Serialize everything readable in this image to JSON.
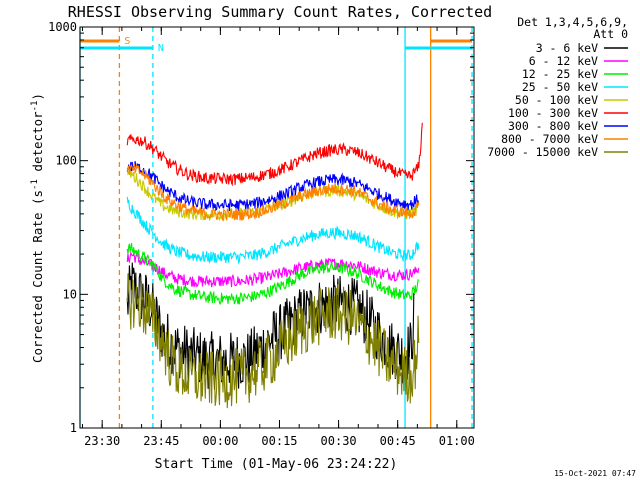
{
  "chart_data": {
    "type": "line",
    "title": "RHESSI Observing Summary Count Rates, Corrected",
    "xlabel": "Start Time (01-May-06 23:24:22)",
    "ylabel": "Corrected Count Rate (s⁻¹ detector⁻¹)",
    "ylabel_parts": {
      "a": "Corrected Count Rate (s",
      "b": "-1",
      "c": " detector",
      "d": "-1",
      "e": ")"
    },
    "yscale": "log",
    "ylim": [
      1,
      1000
    ],
    "xlim_minutes": [
      0,
      100
    ],
    "y_ticks": [
      {
        "v": 1,
        "label": "1"
      },
      {
        "v": 10,
        "label": "10"
      },
      {
        "v": 100,
        "label": "100"
      },
      {
        "v": 1000,
        "label": "1000"
      }
    ],
    "x_ticks": [
      {
        "t": 5.63,
        "label": "23:30"
      },
      {
        "t": 20.63,
        "label": "23:45"
      },
      {
        "t": 35.63,
        "label": "00:00"
      },
      {
        "t": 50.63,
        "label": "00:15"
      },
      {
        "t": 65.63,
        "label": "00:30"
      },
      {
        "t": 80.63,
        "label": "00:45"
      },
      {
        "t": 95.63,
        "label": "01:00"
      }
    ],
    "legend_header": [
      "Det 1,3,4,5,6,9,",
      "Att 0"
    ],
    "timestamp": "15-Oct-2021 07:47",
    "markers": {
      "S": {
        "label": "S",
        "t": 10.0,
        "color": "#ff8000"
      },
      "N": {
        "label": "N",
        "t": 18.5,
        "color": "#00e5ff"
      },
      "cyan_bar_left": [
        0,
        18.5
      ],
      "orange_bar_left": [
        0,
        10.0
      ],
      "cyan_vlines": [
        0,
        18.5,
        82.5,
        99.5
      ],
      "orange_vlines": [
        10.0,
        89.0
      ],
      "orange_bar_right": [
        89.0,
        99.5
      ],
      "cyan_bar_right": [
        82.5,
        99.5
      ]
    },
    "series": [
      {
        "name": "3 - 6 keV",
        "color": "#000000",
        "start_t": 12,
        "end_t": 85,
        "points": [
          [
            12,
            8
          ],
          [
            13,
            12
          ],
          [
            15,
            10
          ],
          [
            17,
            9
          ],
          [
            19,
            7
          ],
          [
            21,
            5
          ],
          [
            24,
            4
          ],
          [
            28,
            3.5
          ],
          [
            33,
            3.2
          ],
          [
            38,
            3.2
          ],
          [
            43,
            3.3
          ],
          [
            48,
            4.5
          ],
          [
            52,
            5.5
          ],
          [
            56,
            7
          ],
          [
            60,
            8
          ],
          [
            64,
            8.5
          ],
          [
            67,
            8.5
          ],
          [
            70,
            8
          ],
          [
            73,
            6.5
          ],
          [
            76,
            5
          ],
          [
            79,
            4
          ],
          [
            82,
            3.5
          ],
          [
            84,
            4
          ],
          [
            85,
            8
          ]
        ]
      },
      {
        "name": "6 - 12 keV",
        "color": "#ff00ff",
        "start_t": 12,
        "end_t": 86,
        "points": [
          [
            12,
            18
          ],
          [
            13,
            20
          ],
          [
            15,
            18
          ],
          [
            17,
            17
          ],
          [
            19,
            16
          ],
          [
            22,
            14
          ],
          [
            25,
            13
          ],
          [
            30,
            12.5
          ],
          [
            35,
            12.5
          ],
          [
            40,
            12.5
          ],
          [
            45,
            13
          ],
          [
            50,
            14
          ],
          [
            55,
            15.5
          ],
          [
            60,
            16.5
          ],
          [
            64,
            17
          ],
          [
            67,
            17
          ],
          [
            70,
            16.5
          ],
          [
            73,
            15.5
          ],
          [
            76,
            14.5
          ],
          [
            80,
            14
          ],
          [
            83,
            14
          ],
          [
            85,
            14.5
          ],
          [
            86,
            16
          ]
        ]
      },
      {
        "name": "12 - 25 keV",
        "color": "#00ee00",
        "start_t": 12,
        "end_t": 86,
        "points": [
          [
            12,
            22
          ],
          [
            13,
            22
          ],
          [
            15,
            20
          ],
          [
            17,
            18
          ],
          [
            19,
            16
          ],
          [
            21,
            13
          ],
          [
            24,
            11
          ],
          [
            28,
            10
          ],
          [
            32,
            9.5
          ],
          [
            36,
            9.3
          ],
          [
            40,
            9.3
          ],
          [
            44,
            9.6
          ],
          [
            48,
            10.5
          ],
          [
            52,
            12
          ],
          [
            56,
            14
          ],
          [
            60,
            15.5
          ],
          [
            64,
            16
          ],
          [
            67,
            15.5
          ],
          [
            70,
            14.5
          ],
          [
            73,
            13
          ],
          [
            76,
            11.5
          ],
          [
            79,
            10.5
          ],
          [
            82,
            9.8
          ],
          [
            84,
            9.8
          ],
          [
            86,
            12
          ]
        ]
      },
      {
        "name": "25 - 50 keV",
        "color": "#00e5ff",
        "start_t": 12,
        "end_t": 86,
        "points": [
          [
            12,
            50
          ],
          [
            13,
            45
          ],
          [
            15,
            38
          ],
          [
            17,
            32
          ],
          [
            19,
            28
          ],
          [
            21,
            24
          ],
          [
            24,
            21
          ],
          [
            28,
            19.5
          ],
          [
            32,
            19
          ],
          [
            36,
            19
          ],
          [
            40,
            19
          ],
          [
            44,
            19.5
          ],
          [
            48,
            21
          ],
          [
            52,
            23.5
          ],
          [
            56,
            26
          ],
          [
            60,
            28
          ],
          [
            64,
            29
          ],
          [
            67,
            28.5
          ],
          [
            70,
            27.5
          ],
          [
            73,
            25
          ],
          [
            76,
            22.5
          ],
          [
            79,
            20.5
          ],
          [
            82,
            19.5
          ],
          [
            84,
            19.5
          ],
          [
            86,
            24
          ]
        ]
      },
      {
        "name": "50 - 100 keV",
        "color": "#c8c800",
        "start_t": 12,
        "end_t": 86,
        "points": [
          [
            12,
            82
          ],
          [
            13,
            80
          ],
          [
            15,
            70
          ],
          [
            17,
            60
          ],
          [
            19,
            52
          ],
          [
            21,
            46
          ],
          [
            24,
            42
          ],
          [
            28,
            40
          ],
          [
            32,
            39.5
          ],
          [
            36,
            39.5
          ],
          [
            40,
            40
          ],
          [
            44,
            41
          ],
          [
            48,
            44
          ],
          [
            52,
            48
          ],
          [
            56,
            54
          ],
          [
            60,
            58
          ],
          [
            64,
            60
          ],
          [
            67,
            59
          ],
          [
            70,
            56
          ],
          [
            73,
            51
          ],
          [
            76,
            46
          ],
          [
            79,
            42
          ],
          [
            82,
            40
          ],
          [
            84,
            40
          ],
          [
            86,
            44
          ]
        ]
      },
      {
        "name": "100 - 300 keV",
        "color": "#ff0000",
        "start_t": 12,
        "end_t": 87,
        "points": [
          [
            12,
            140
          ],
          [
            14,
            145
          ],
          [
            16,
            140
          ],
          [
            18,
            128
          ],
          [
            20,
            112
          ],
          [
            22,
            98
          ],
          [
            25,
            86
          ],
          [
            28,
            78
          ],
          [
            32,
            74
          ],
          [
            36,
            73
          ],
          [
            40,
            73
          ],
          [
            44,
            75
          ],
          [
            48,
            80
          ],
          [
            52,
            88
          ],
          [
            56,
            100
          ],
          [
            60,
            113
          ],
          [
            64,
            120
          ],
          [
            67,
            121
          ],
          [
            70,
            116
          ],
          [
            73,
            106
          ],
          [
            76,
            95
          ],
          [
            79,
            85
          ],
          [
            82,
            78
          ],
          [
            84,
            76
          ],
          [
            86,
            90
          ],
          [
            87,
            200
          ]
        ]
      },
      {
        "name": "300 - 800 keV",
        "color": "#0000ff",
        "start_t": 12,
        "end_t": 86,
        "points": [
          [
            12,
            90
          ],
          [
            14,
            90
          ],
          [
            16,
            86
          ],
          [
            18,
            78
          ],
          [
            20,
            68
          ],
          [
            22,
            60
          ],
          [
            25,
            53
          ],
          [
            28,
            49
          ],
          [
            32,
            47
          ],
          [
            36,
            46.5
          ],
          [
            40,
            46.5
          ],
          [
            44,
            47.5
          ],
          [
            48,
            51
          ],
          [
            52,
            56
          ],
          [
            56,
            63
          ],
          [
            60,
            69
          ],
          [
            64,
            72
          ],
          [
            67,
            71
          ],
          [
            70,
            68
          ],
          [
            73,
            62
          ],
          [
            76,
            56
          ],
          [
            79,
            51
          ],
          [
            82,
            48
          ],
          [
            84,
            47
          ],
          [
            86,
            52
          ]
        ]
      },
      {
        "name": "800 - 7000 keV",
        "color": "#ff8000",
        "start_t": 12,
        "end_t": 86,
        "points": [
          [
            12,
            85
          ],
          [
            14,
            86
          ],
          [
            16,
            80
          ],
          [
            18,
            70
          ],
          [
            20,
            60
          ],
          [
            22,
            52
          ],
          [
            25,
            46
          ],
          [
            28,
            42
          ],
          [
            32,
            40
          ],
          [
            36,
            39.5
          ],
          [
            40,
            39.5
          ],
          [
            44,
            40.5
          ],
          [
            48,
            43.5
          ],
          [
            52,
            48
          ],
          [
            56,
            54
          ],
          [
            60,
            59
          ],
          [
            64,
            62
          ],
          [
            67,
            61.5
          ],
          [
            70,
            59
          ],
          [
            73,
            53
          ],
          [
            76,
            47
          ],
          [
            79,
            43
          ],
          [
            82,
            41
          ],
          [
            84,
            40
          ],
          [
            86,
            45
          ]
        ]
      },
      {
        "name": "7000 - 15000 keV",
        "color": "#808000",
        "start_t": 12,
        "end_t": 86,
        "points": [
          [
            12,
            9
          ],
          [
            13,
            9
          ],
          [
            15,
            8.5
          ],
          [
            17,
            7.5
          ],
          [
            19,
            6
          ],
          [
            21,
            4.5
          ],
          [
            23,
            3.2
          ],
          [
            25,
            2.7
          ],
          [
            28,
            2.4
          ],
          [
            32,
            2.3
          ],
          [
            36,
            2.3
          ],
          [
            40,
            2.4
          ],
          [
            44,
            2.6
          ],
          [
            48,
            3.2
          ],
          [
            52,
            4.2
          ],
          [
            56,
            5.5
          ],
          [
            60,
            6.6
          ],
          [
            63,
            7.2
          ],
          [
            66,
            7.2
          ],
          [
            69,
            6.6
          ],
          [
            72,
            5.4
          ],
          [
            75,
            4.2
          ],
          [
            78,
            3.2
          ],
          [
            81,
            2.7
          ],
          [
            83,
            2.5
          ],
          [
            84,
            2.5
          ],
          [
            85,
            3
          ],
          [
            86,
            5
          ]
        ]
      }
    ]
  }
}
